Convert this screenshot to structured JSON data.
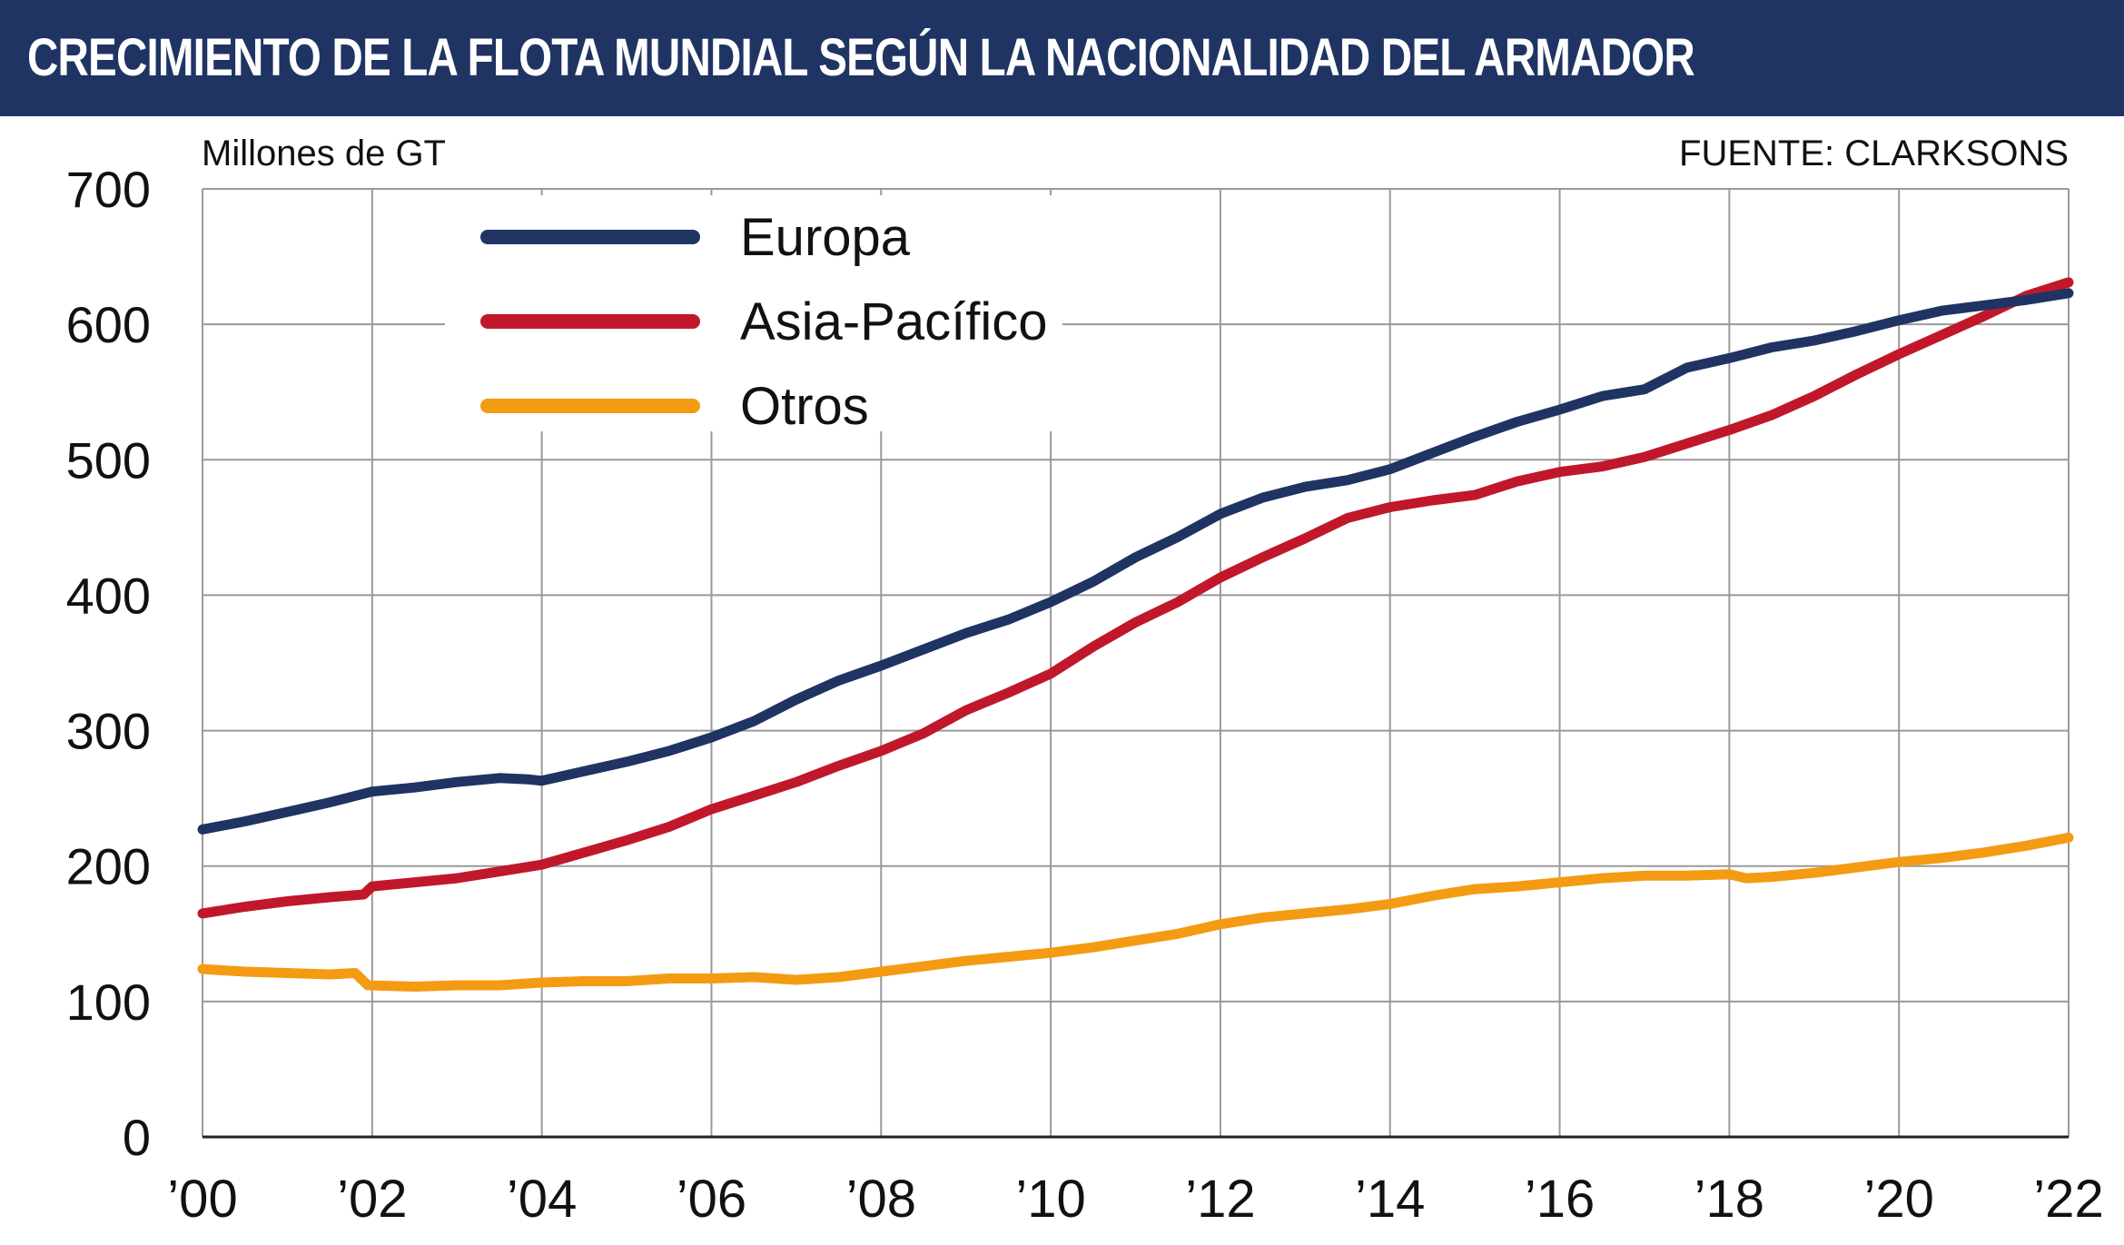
{
  "header": {
    "title": "CRECIMIENTO DE LA FLOTA MUNDIAL SEGÚN LA NACIONALIDAD DEL ARMADOR"
  },
  "chart_data": {
    "type": "line",
    "title": "CRECIMIENTO DE LA FLOTA MUNDIAL SEGÚN LA NACIONALIDAD DEL ARMADOR",
    "unit_label": "Millones de GT",
    "source": "FUENTE: CLARKSONS",
    "xlabel": "",
    "ylabel": "Millones de GT",
    "xlim": [
      2000,
      2022
    ],
    "ylim": [
      0,
      700
    ],
    "y_ticks": [
      0,
      100,
      200,
      300,
      400,
      500,
      600,
      700
    ],
    "x_ticks": [
      2000,
      2002,
      2004,
      2006,
      2008,
      2010,
      2012,
      2014,
      2016,
      2018,
      2020,
      2022
    ],
    "x_tick_labels": [
      "’00",
      "’02",
      "’04",
      "’06",
      "’08",
      "’10",
      "’12",
      "’14",
      "’16",
      "’18",
      "’20",
      "’22"
    ],
    "grid": true,
    "legend_position": "top-left",
    "series": [
      {
        "name": "Europa",
        "color": "#1f3463",
        "x": [
          2000,
          2000.5,
          2001,
          2001.5,
          2002,
          2002.5,
          2003,
          2003.5,
          2003.85,
          2004,
          2004.5,
          2005,
          2005.5,
          2006,
          2006.5,
          2007,
          2007.5,
          2008,
          2008.5,
          2009,
          2009.5,
          2010,
          2010.5,
          2011,
          2011.5,
          2012,
          2012.5,
          2013,
          2013.5,
          2014,
          2014.5,
          2015,
          2015.5,
          2016,
          2016.5,
          2017,
          2017.5,
          2018,
          2018.5,
          2019,
          2019.5,
          2020,
          2020.5,
          2021,
          2021.5,
          2022
        ],
        "values": [
          227,
          233,
          240,
          247,
          255,
          258,
          262,
          265,
          264,
          263,
          270,
          277,
          285,
          295,
          307,
          323,
          337,
          348,
          360,
          372,
          382,
          395,
          410,
          428,
          443,
          460,
          472,
          480,
          485,
          493,
          505,
          517,
          528,
          537,
          547,
          552,
          568,
          575,
          583,
          588,
          595,
          603,
          610,
          614,
          618,
          623
        ]
      },
      {
        "name": "Asia-Pacífico",
        "color": "#c0182a",
        "x": [
          2000,
          2000.5,
          2001,
          2001.5,
          2001.9,
          2002,
          2002.5,
          2003,
          2003.5,
          2004,
          2004.5,
          2005,
          2005.5,
          2006,
          2006.5,
          2007,
          2007.5,
          2008,
          2008.5,
          2009,
          2009.5,
          2010,
          2010.5,
          2011,
          2011.5,
          2012,
          2012.5,
          2013,
          2013.5,
          2014,
          2014.5,
          2015,
          2015.5,
          2016,
          2016.5,
          2017,
          2017.5,
          2018,
          2018.5,
          2019,
          2019.5,
          2020,
          2020.5,
          2021,
          2021.5,
          2022
        ],
        "values": [
          165,
          170,
          174,
          177,
          179,
          185,
          188,
          191,
          196,
          201,
          210,
          219,
          229,
          242,
          252,
          262,
          274,
          285,
          298,
          315,
          328,
          342,
          362,
          380,
          395,
          413,
          428,
          442,
          457,
          465,
          470,
          474,
          484,
          491,
          495,
          502,
          512,
          522,
          533,
          547,
          563,
          578,
          592,
          606,
          621,
          631
        ]
      },
      {
        "name": "Otros",
        "color": "#f39b12",
        "x": [
          2000,
          2000.5,
          2001,
          2001.5,
          2001.8,
          2001.95,
          2002.5,
          2003,
          2003.5,
          2004,
          2004.5,
          2005,
          2005.5,
          2006,
          2006.5,
          2007,
          2007.5,
          2008,
          2008.5,
          2009,
          2009.5,
          2010,
          2010.5,
          2011,
          2011.5,
          2012,
          2012.5,
          2013,
          2013.5,
          2014,
          2014.5,
          2015,
          2015.5,
          2016,
          2016.5,
          2017,
          2017.5,
          2018,
          2018.2,
          2018.5,
          2019,
          2019.5,
          2020,
          2020.5,
          2021,
          2021.5,
          2022
        ],
        "values": [
          124,
          122,
          121,
          120,
          121,
          112,
          111,
          112,
          112,
          114,
          115,
          115,
          117,
          117,
          118,
          116,
          118,
          122,
          126,
          130,
          133,
          136,
          140,
          145,
          150,
          157,
          162,
          165,
          168,
          172,
          178,
          183,
          185,
          188,
          191,
          193,
          193,
          194,
          191,
          192,
          195,
          199,
          203,
          206,
          210,
          215,
          221
        ]
      }
    ]
  }
}
